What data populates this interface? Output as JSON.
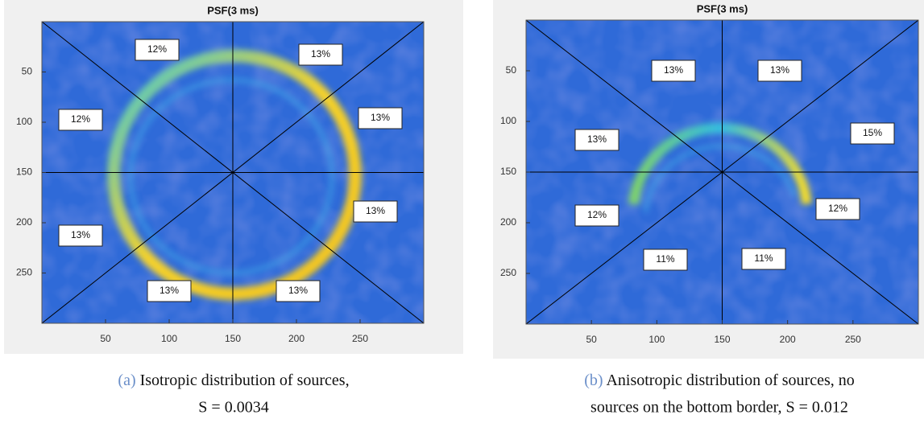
{
  "figures": [
    {
      "title": "PSF(3 ms)",
      "xlim": [
        0,
        300
      ],
      "ylim": [
        0,
        300
      ],
      "xticks": [
        50,
        100,
        150,
        200,
        250
      ],
      "yticks": [
        50,
        100,
        150,
        200,
        250
      ],
      "annotations": [
        "12%",
        "13%",
        "12%",
        "13%",
        "13%",
        "13%",
        "13%",
        "13%"
      ],
      "caption": {
        "label": "(a)",
        "line1": "Isotropic distribution of sources,",
        "line2": "S = 0.0034"
      }
    },
    {
      "title": "PSF(3 ms)",
      "xlim": [
        0,
        300
      ],
      "ylim": [
        0,
        300
      ],
      "xticks": [
        50,
        100,
        150,
        200,
        250
      ],
      "yticks": [
        50,
        100,
        150,
        200,
        250
      ],
      "annotations": [
        "13%",
        "13%",
        "13%",
        "15%",
        "12%",
        "12%",
        "11%",
        "11%"
      ],
      "caption": {
        "label": "(b)",
        "line1": "Anisotropic distribution of sources, no",
        "line2": "sources on the bottom border, S = 0.012"
      }
    }
  ]
}
